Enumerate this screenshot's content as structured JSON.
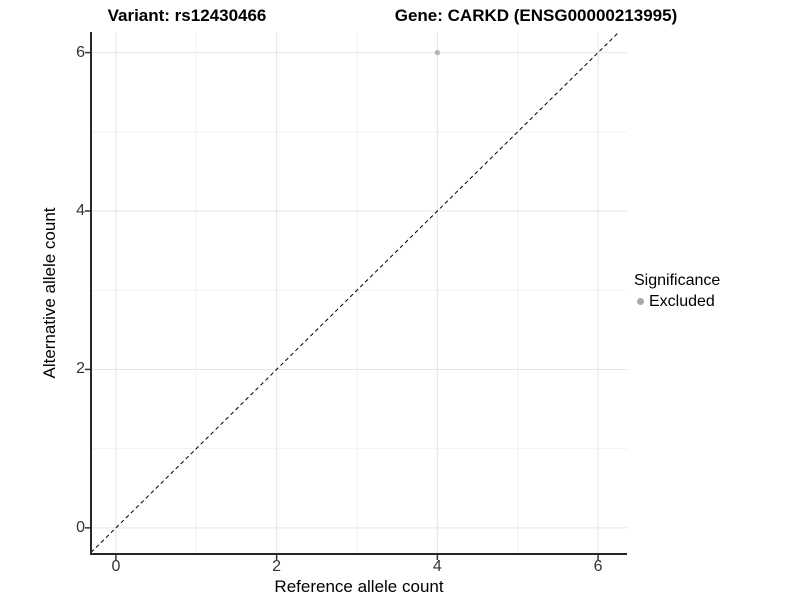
{
  "chart_data": {
    "type": "scatter",
    "titles": {
      "left": "Variant: rs12430466",
      "right": "Gene: CARKD (ENSG00000213995)"
    },
    "xlabel": "Reference allele count",
    "ylabel": "Alternative allele count",
    "xlim": [
      -0.31,
      6.36
    ],
    "ylim": [
      -0.33,
      6.26
    ],
    "x_ticks": [
      0,
      2,
      4,
      6
    ],
    "y_ticks": [
      0,
      2,
      4,
      6
    ],
    "x_minor_ticks": [
      1,
      3,
      5
    ],
    "y_minor_ticks": [
      1,
      3,
      5
    ],
    "grid": "major+minor",
    "legend_position": "right",
    "series": [
      {
        "name": "Excluded",
        "color": "#b3b3b3",
        "marker": "circle",
        "marker_radius": 2.6,
        "points": [
          {
            "x": 4,
            "y": 6
          }
        ]
      }
    ],
    "reference_line": {
      "slope": 1,
      "intercept": 0,
      "style": "dashed",
      "color": "#000000"
    }
  },
  "legend": {
    "title": "Significance",
    "items": [
      {
        "label": "Excluded",
        "color": "#a8a8a8"
      }
    ]
  },
  "styles": {
    "grid_major_color": "#e5e5e5",
    "grid_minor_color": "#f2f2f2",
    "axis_line_color": "#262626",
    "tick_mark_color": "#333333"
  }
}
